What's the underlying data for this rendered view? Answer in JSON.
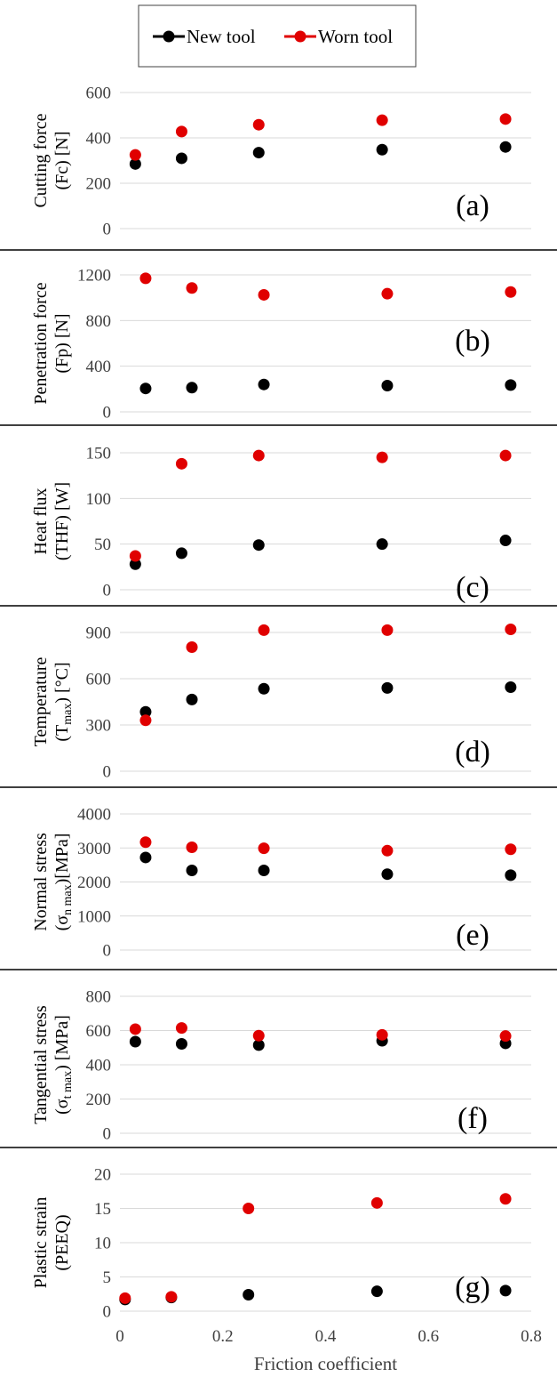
{
  "legend": {
    "entries": [
      {
        "label": "New tool",
        "color": "#000000"
      },
      {
        "label": "Worn tool",
        "color": "#e00000"
      }
    ]
  },
  "chart_data": [
    {
      "type": "scatter",
      "panel_label": "(a)",
      "ylabel_line1": "Cutting force",
      "ylabel_line2": "(Fc) [N]",
      "ylim": [
        0,
        600
      ],
      "yticks": [
        0,
        200,
        400,
        600
      ],
      "grid": true,
      "series": [
        {
          "name": "New tool",
          "color": "#000000",
          "x": [
            0.03,
            0.12,
            0.27,
            0.51,
            0.75
          ],
          "y": [
            285,
            310,
            335,
            348,
            360
          ]
        },
        {
          "name": "Worn tool",
          "color": "#e00000",
          "x": [
            0.03,
            0.12,
            0.27,
            0.51,
            0.75
          ],
          "y": [
            325,
            428,
            458,
            478,
            483
          ]
        }
      ]
    },
    {
      "type": "scatter",
      "panel_label": "(b)",
      "ylabel_line1": "Penetration force",
      "ylabel_line2": "(Fp) [N]",
      "ylim": [
        0,
        1200
      ],
      "yticks": [
        0,
        400,
        800,
        1200
      ],
      "grid": true,
      "series": [
        {
          "name": "New tool",
          "color": "#000000",
          "x": [
            0.05,
            0.14,
            0.28,
            0.52,
            0.76
          ],
          "y": [
            205,
            212,
            240,
            230,
            235
          ]
        },
        {
          "name": "Worn tool",
          "color": "#e00000",
          "x": [
            0.05,
            0.14,
            0.28,
            0.52,
            0.76
          ],
          "y": [
            1170,
            1085,
            1025,
            1035,
            1050
          ]
        }
      ]
    },
    {
      "type": "scatter",
      "panel_label": "(c)",
      "ylabel_line1": "Heat flux",
      "ylabel_line2": "(THF) [W]",
      "ylim": [
        0,
        150
      ],
      "yticks": [
        0,
        50,
        100,
        150
      ],
      "grid": true,
      "series": [
        {
          "name": "New tool",
          "color": "#000000",
          "x": [
            0.03,
            0.12,
            0.27,
            0.51,
            0.75
          ],
          "y": [
            28,
            40,
            49,
            50,
            54
          ]
        },
        {
          "name": "Worn tool",
          "color": "#e00000",
          "x": [
            0.03,
            0.12,
            0.27,
            0.51,
            0.75
          ],
          "y": [
            37,
            138,
            147,
            145,
            147
          ]
        }
      ]
    },
    {
      "type": "scatter",
      "panel_label": "(d)",
      "ylabel_line1": "Temperature",
      "ylabel_line2": "(T",
      "ylabel_sub": "max",
      "ylabel_line2_end": ") [°C]",
      "ylim": [
        0,
        900
      ],
      "yticks": [
        0,
        300,
        600,
        900
      ],
      "grid": true,
      "series": [
        {
          "name": "New tool",
          "color": "#000000",
          "x": [
            0.05,
            0.14,
            0.28,
            0.52,
            0.76
          ],
          "y": [
            385,
            465,
            535,
            540,
            545
          ]
        },
        {
          "name": "Worn tool",
          "color": "#e00000",
          "x": [
            0.05,
            0.14,
            0.28,
            0.52,
            0.76
          ],
          "y": [
            330,
            805,
            915,
            915,
            920
          ]
        }
      ]
    },
    {
      "type": "scatter",
      "panel_label": "(e)",
      "ylabel_line1": "Normal stress",
      "ylabel_line2": "(σ",
      "ylabel_sub": "n max",
      "ylabel_line2_end": ")[MPa]",
      "ylim": [
        0,
        4000
      ],
      "yticks": [
        0,
        1000,
        2000,
        3000,
        4000
      ],
      "grid": true,
      "series": [
        {
          "name": "New tool",
          "color": "#000000",
          "x": [
            0.05,
            0.14,
            0.28,
            0.52,
            0.76
          ],
          "y": [
            2720,
            2340,
            2340,
            2230,
            2200
          ]
        },
        {
          "name": "Worn tool",
          "color": "#e00000",
          "x": [
            0.05,
            0.14,
            0.28,
            0.52,
            0.76
          ],
          "y": [
            3170,
            3020,
            2990,
            2920,
            2960
          ]
        }
      ]
    },
    {
      "type": "scatter",
      "panel_label": "(f)",
      "ylabel_line1": "Tangential stress",
      "ylabel_line2": "(σ",
      "ylabel_sub": "t max",
      "ylabel_line2_end": ") [MPa]",
      "ylim": [
        0,
        800
      ],
      "yticks": [
        0,
        200,
        400,
        600,
        800
      ],
      "grid": true,
      "series": [
        {
          "name": "New tool",
          "color": "#000000",
          "x": [
            0.03,
            0.12,
            0.27,
            0.51,
            0.75
          ],
          "y": [
            535,
            522,
            515,
            540,
            525
          ]
        },
        {
          "name": "Worn tool",
          "color": "#e00000",
          "x": [
            0.03,
            0.12,
            0.27,
            0.51,
            0.75
          ],
          "y": [
            608,
            615,
            570,
            575,
            568
          ]
        }
      ]
    },
    {
      "type": "scatter",
      "panel_label": "(g)",
      "ylabel_line1": "Plastic strain",
      "ylabel_line2": "(PEEQ)",
      "xlabel": "Friction coefficient",
      "xlim": [
        0,
        0.8
      ],
      "xticks": [
        0,
        0.2,
        0.4,
        0.6,
        0.8
      ],
      "xtick_labels": [
        "0",
        "0.2",
        "0.4",
        "0.6",
        "0.8"
      ],
      "ylim": [
        0,
        20
      ],
      "yticks": [
        0,
        5,
        10,
        15,
        20
      ],
      "grid": true,
      "series": [
        {
          "name": "New tool",
          "color": "#000000",
          "x": [
            0.01,
            0.1,
            0.25,
            0.5,
            0.75
          ],
          "y": [
            1.7,
            2.0,
            2.4,
            2.9,
            3.0
          ]
        },
        {
          "name": "Worn tool",
          "color": "#e00000",
          "x": [
            0.01,
            0.1,
            0.25,
            0.5,
            0.75
          ],
          "y": [
            1.9,
            2.1,
            15.0,
            15.8,
            16.4
          ]
        }
      ]
    }
  ]
}
